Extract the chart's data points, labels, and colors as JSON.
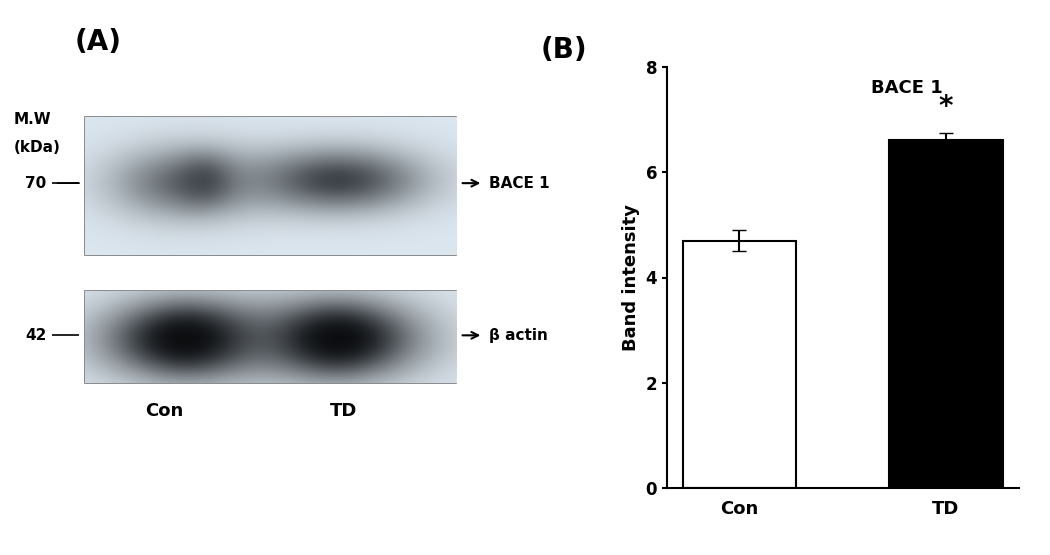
{
  "panel_a_label": "(A)",
  "panel_b_label": "(B)",
  "mw_label": "M.W",
  "kda_label": "(kDa)",
  "mw_70": "70",
  "mw_42": "42",
  "bace1_label": "BACE 1",
  "beta_actin_label": "β actin",
  "con_label": "Con",
  "td_label": "TD",
  "bar_categories": [
    "Con",
    "TD"
  ],
  "bar_values": [
    4.7,
    6.6
  ],
  "bar_errors": [
    0.2,
    0.15
  ],
  "bar_colors": [
    "#ffffff",
    "#000000"
  ],
  "bar_edge_colors": [
    "#000000",
    "#000000"
  ],
  "ylabel": "Band intensity",
  "chart_title": "BACE 1",
  "ylim": [
    0,
    8
  ],
  "yticks": [
    0,
    2,
    4,
    6,
    8
  ],
  "significance_label": "*",
  "background_color": "#ffffff",
  "upper_blot_bg": "#dce8f0",
  "lower_blot_bg": "#dce8f0"
}
